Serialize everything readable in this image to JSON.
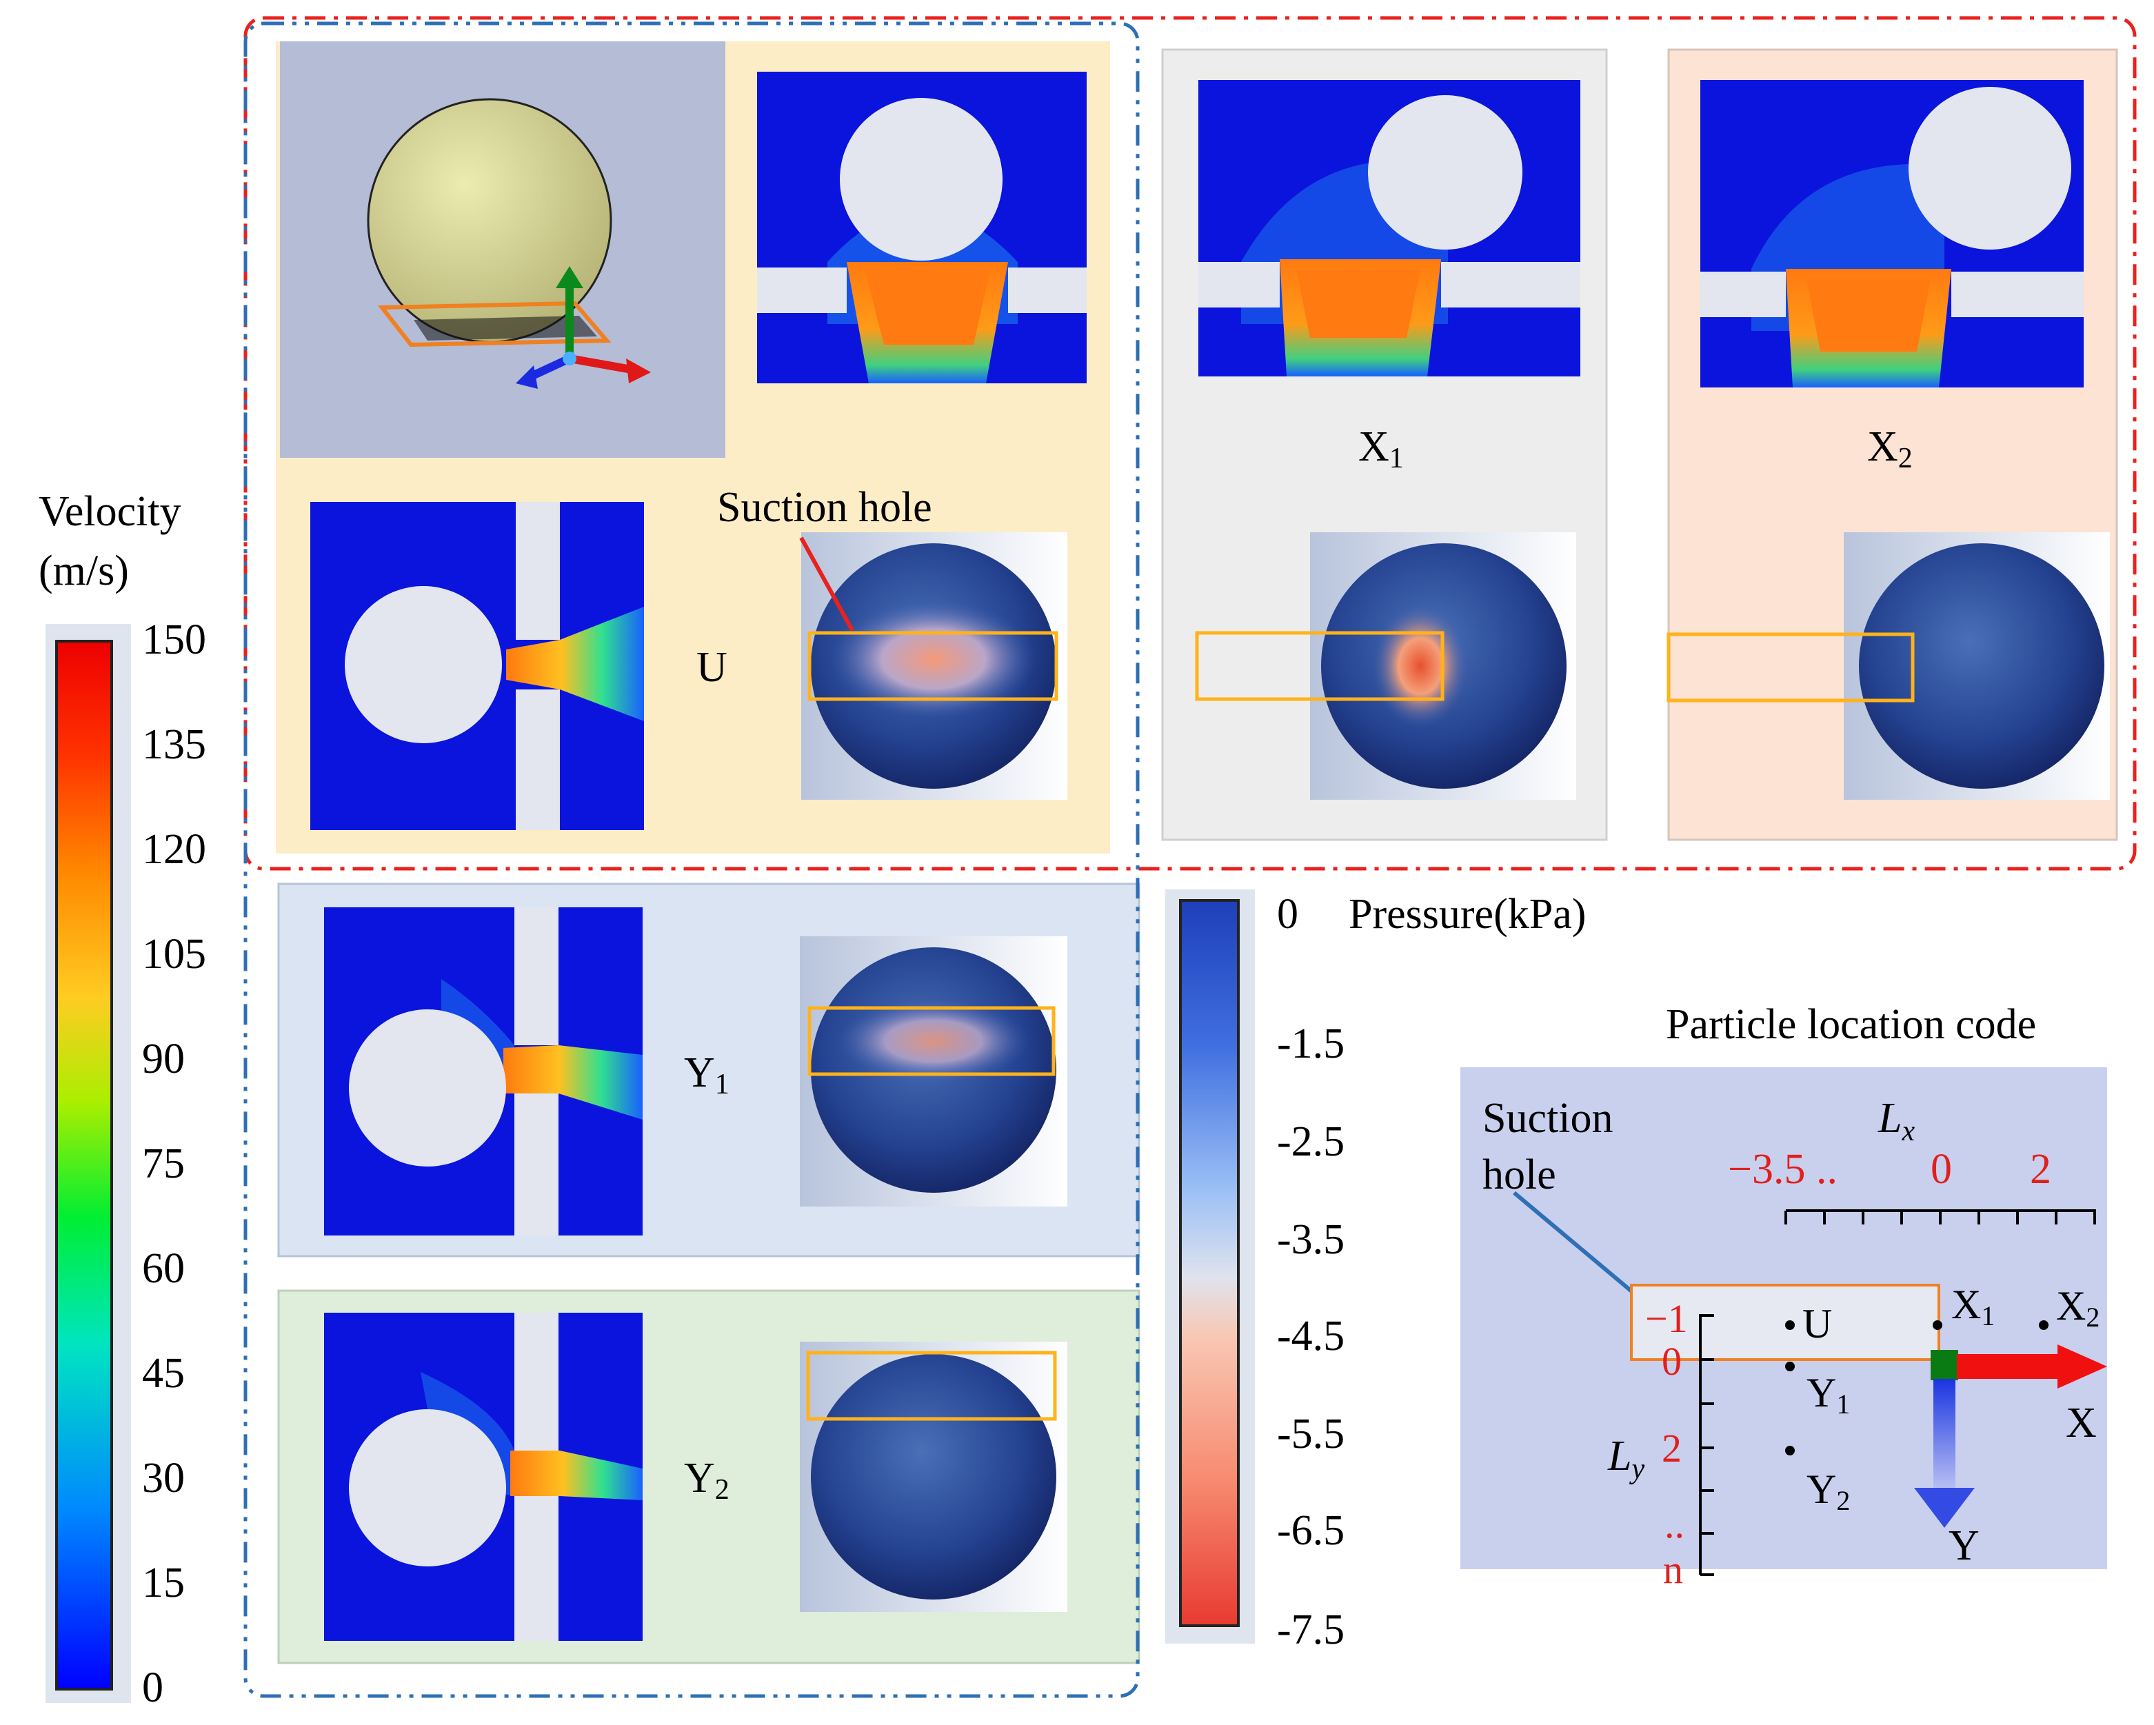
{
  "velocity_legend": {
    "title_line1": "Velocity",
    "title_line2": "(m/s)",
    "ticks": [
      "150",
      "135",
      "120",
      "105",
      "90",
      "75",
      "60",
      "45",
      "30",
      "15",
      "0"
    ]
  },
  "pressure_legend": {
    "title": "Pressure(kPa)",
    "ticks": [
      "0",
      "-1.5",
      "-2.5",
      "-3.5",
      "-4.5",
      "-5.5",
      "-6.5",
      "-7.5"
    ]
  },
  "cases": {
    "U": "U",
    "X1": {
      "base": "X",
      "sub": "1"
    },
    "X2": {
      "base": "X",
      "sub": "2"
    },
    "Y1": {
      "base": "Y",
      "sub": "1"
    },
    "Y2": {
      "base": "Y",
      "sub": "2"
    }
  },
  "suction_hole_callout": "Suction hole",
  "location_code": {
    "title": "Particle location code",
    "suction_line1": "Suction",
    "suction_line2": "hole",
    "lx_label": "L",
    "lx_sub": "x",
    "ly_label": "L",
    "ly_sub": "y",
    "x_ticks": {
      "left": "−3.5 ..",
      "zero": "0",
      "right": "2"
    },
    "y_ticks": {
      "top": "−1",
      "zero": "0",
      "two": "2",
      "dots": "..",
      "n": "n"
    },
    "points": {
      "U": "U",
      "X1": {
        "base": "X",
        "sub": "1"
      },
      "X2": {
        "base": "X",
        "sub": "2"
      },
      "Y1": {
        "base": "Y",
        "sub": "1"
      },
      "Y2": {
        "base": "Y",
        "sub": "2"
      }
    },
    "axis_x": "X",
    "axis_y": "Y"
  },
  "colors": {
    "frame_red": "#e8221e",
    "frame_blue": "#2e6fb5",
    "panel_yellow": "#fcedc6",
    "panel_gray": "#ededed",
    "panel_peach": "#fce3d4",
    "panel_lightblue": "#dae4f3",
    "panel_green": "#dfeddb",
    "panel_lavender": "#c9d0ee",
    "flow_blue": "#0a14dc",
    "highlight_orange": "#ffb21a",
    "tick_red": "#e0201d"
  }
}
